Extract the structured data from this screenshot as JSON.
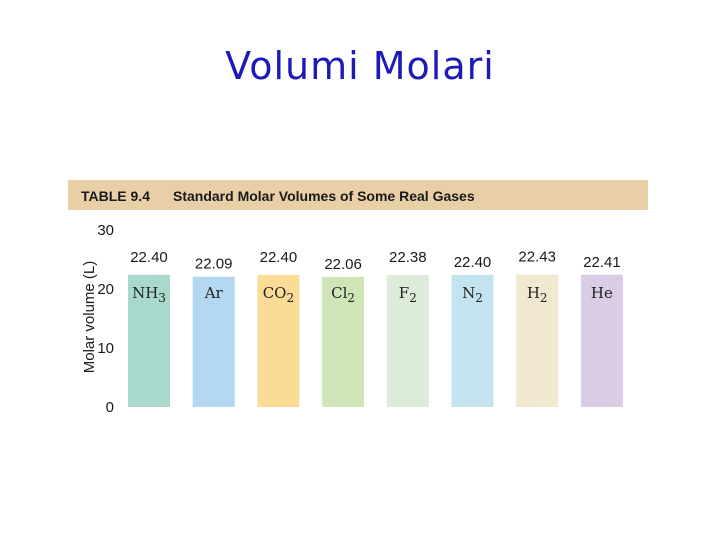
{
  "slide": {
    "title": "Volumi Molari"
  },
  "table": {
    "number": "TABLE 9.4",
    "caption": "Standard Molar Volumes of Some Real Gases"
  },
  "chart_data": {
    "type": "bar",
    "title": "",
    "xlabel": "",
    "ylabel": "Molar volume (L)",
    "ylim": [
      0,
      30
    ],
    "yticks": [
      0,
      10,
      20,
      30
    ],
    "grid": false,
    "categories": [
      {
        "base": "NH",
        "sub": "3"
      },
      {
        "base": "Ar",
        "sub": ""
      },
      {
        "base": "CO",
        "sub": "2"
      },
      {
        "base": "Cl",
        "sub": "2"
      },
      {
        "base": "F",
        "sub": "2"
      },
      {
        "base": "N",
        "sub": "2"
      },
      {
        "base": "H",
        "sub": "2"
      },
      {
        "base": "He",
        "sub": ""
      }
    ],
    "values": [
      22.4,
      22.09,
      22.4,
      22.06,
      22.38,
      22.4,
      22.43,
      22.41
    ],
    "value_labels": [
      "22.40",
      "22.09",
      "22.40",
      "22.06",
      "22.38",
      "22.40",
      "22.43",
      "22.41"
    ],
    "colors": [
      "#a9d9cd",
      "#b3d8f2",
      "#fbdc97",
      "#cfe5b6",
      "#dcecd9",
      "#c3e4ef",
      "#f0e8cf",
      "#d9cce4"
    ]
  }
}
